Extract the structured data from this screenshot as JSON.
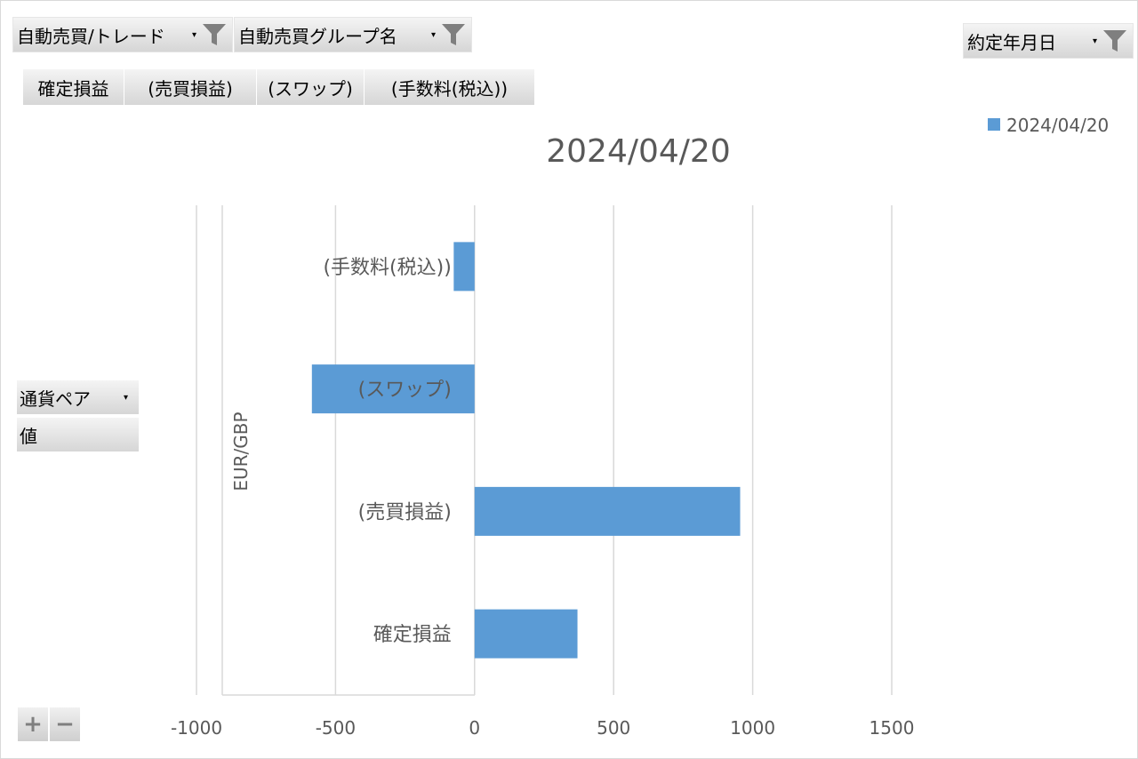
{
  "filters": {
    "trade": "自動売買/トレード",
    "group": "自動売買グループ名",
    "date": "約定年月日"
  },
  "values_buttons": [
    "確定損益",
    "(売買損益)",
    "(スワップ)",
    "(手数料(税込))"
  ],
  "row_fields": {
    "currency_pair": "通貨ペア",
    "values": "値"
  },
  "zoom": {
    "plus": "+",
    "minus": "−"
  },
  "colors": {
    "bar": "#5b9bd5",
    "grid": "#d9d9d9",
    "text": "#595959"
  },
  "chart_data": {
    "type": "bar",
    "orientation": "horizontal",
    "title": "2024/04/20",
    "group_label": "EUR/GBP",
    "categories": [
      "(手数料(税込))",
      "(スワップ)",
      "(売買損益)",
      "確定損益"
    ],
    "series": [
      {
        "name": "2024/04/20",
        "values": [
          -75,
          -585,
          955,
          370
        ]
      }
    ],
    "xlim": [
      -1000,
      1500
    ],
    "xticks": [
      -1000,
      -500,
      0,
      500,
      1000,
      1500
    ],
    "grid": true,
    "legend": "top-right"
  }
}
